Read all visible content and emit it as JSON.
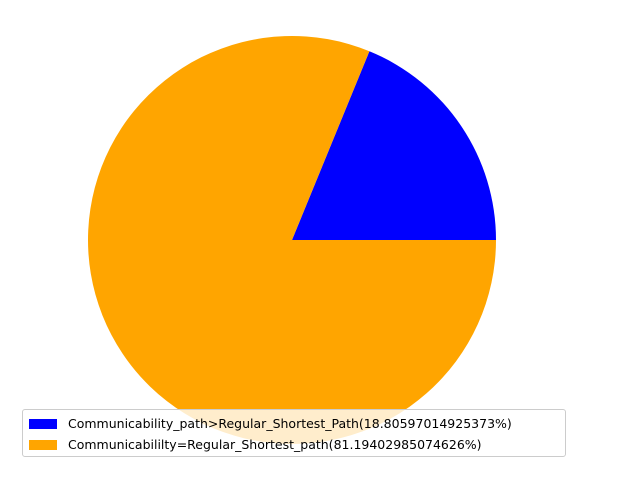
{
  "chart_data": {
    "type": "pie",
    "title": "",
    "slices": [
      {
        "label": "Communicability_path>Regular_Shortest_Path(18.80597014925373%)",
        "value": 18.80597014925373,
        "color": "#0000ff"
      },
      {
        "label": "Communicabililty=Regular_Shortest_path(81.19402985074626%)",
        "value": 81.19402985074626,
        "color": "#ffa500"
      }
    ],
    "legend": {
      "placement": "lower-left",
      "entries": [
        "Communicability_path>Regular_Shortest_Path(18.80597014925373%)",
        "Communicabililty=Regular_Shortest_path(81.19402985074626%)"
      ]
    }
  }
}
